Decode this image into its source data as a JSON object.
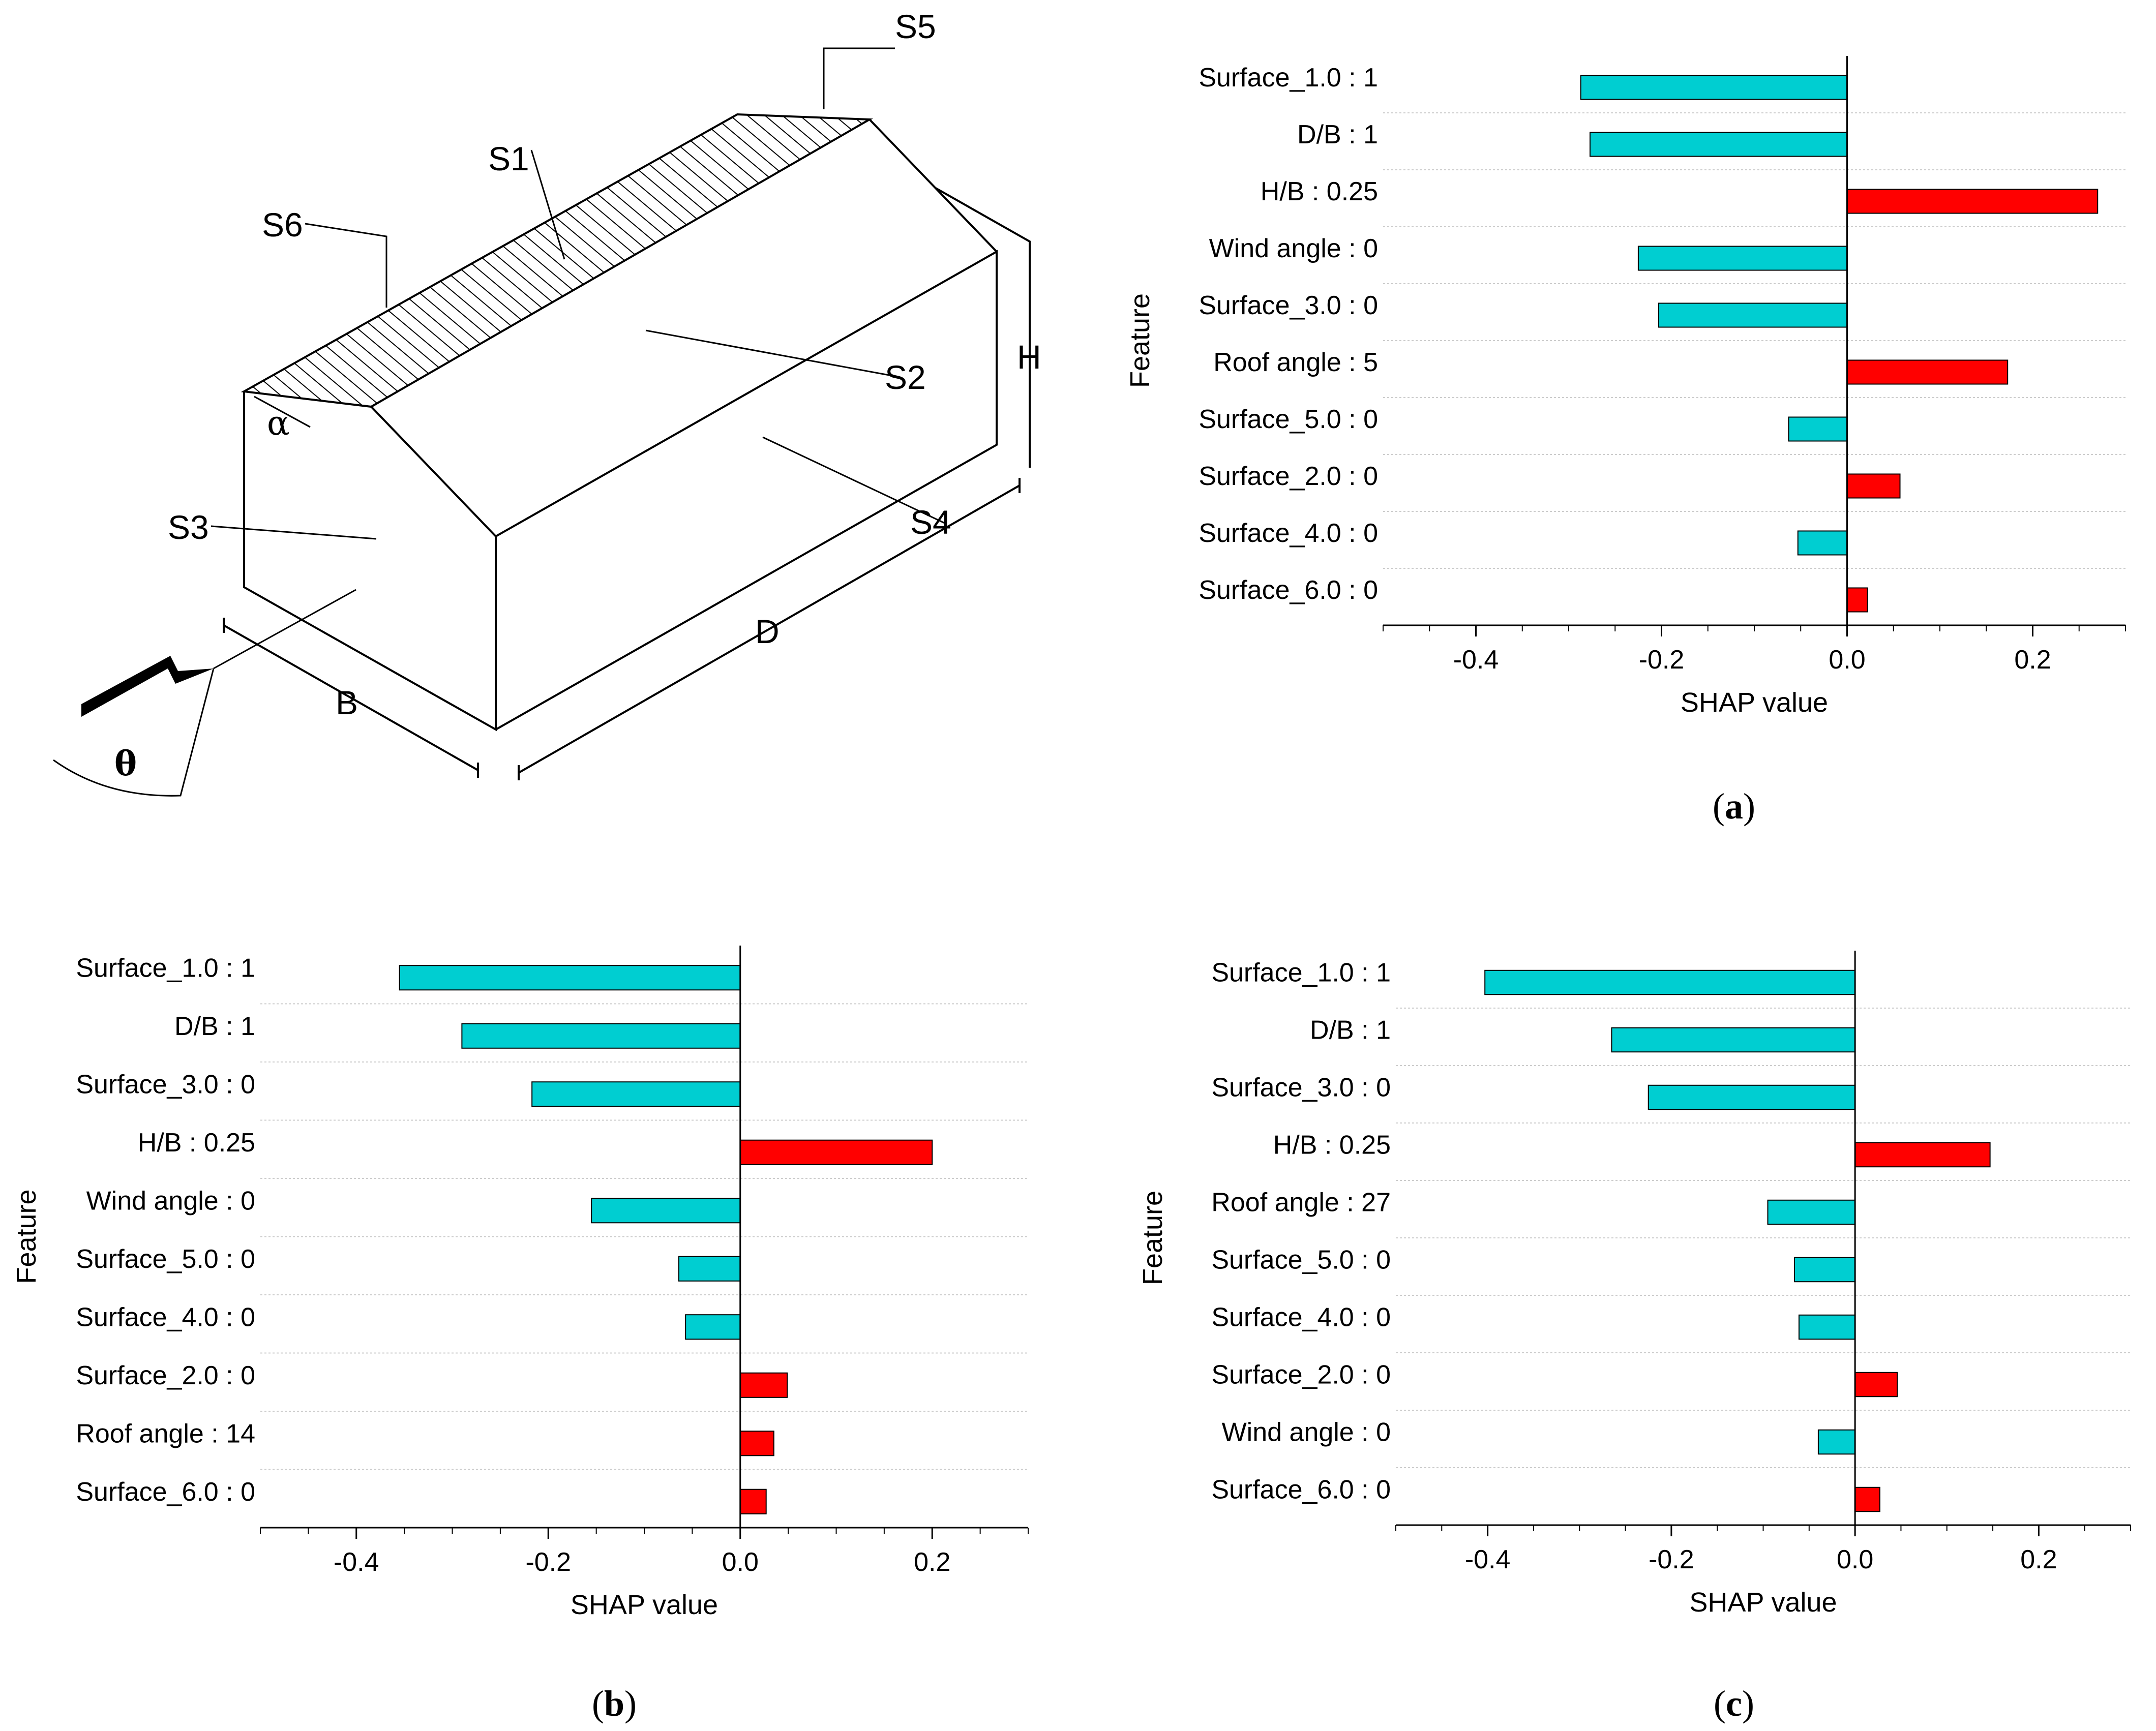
{
  "diagram": {
    "labels": {
      "s1": "S1",
      "s2": "S2",
      "s3": "S3",
      "s4": "S4",
      "s5": "S5",
      "s6": "S6",
      "alpha": "α",
      "theta": "θ",
      "b": "B",
      "d": "D",
      "h": "H"
    }
  },
  "captions": {
    "a": "a",
    "b": "b",
    "c": "c"
  },
  "colors": {
    "negative": "#00CED1",
    "positive": "#FF0000",
    "grid": "#cccccc",
    "axis": "#000000"
  },
  "chart_data": [
    {
      "id": "a",
      "type": "bar",
      "orientation": "horizontal",
      "xlabel": "SHAP value",
      "ylabel": "Feature",
      "xlim": [
        -0.5,
        0.3
      ],
      "xticks": [
        -0.4,
        -0.2,
        0.0,
        0.2
      ],
      "categories": [
        "Surface_1.0 : 1",
        "D/B : 1",
        "H/B : 0.25",
        "Wind angle : 0",
        "Surface_3.0 : 0",
        "Roof angle : 5",
        "Surface_5.0 : 0",
        "Surface_2.0 : 0",
        "Surface_4.0 : 0",
        "Surface_6.0 : 0"
      ],
      "values": [
        -0.287,
        -0.277,
        0.27,
        -0.225,
        -0.203,
        0.173,
        -0.063,
        0.057,
        -0.053,
        0.022
      ]
    },
    {
      "id": "b",
      "type": "bar",
      "orientation": "horizontal",
      "xlabel": "SHAP value",
      "ylabel": "Feature",
      "xlim": [
        -0.5,
        0.3
      ],
      "xticks": [
        -0.4,
        -0.2,
        0.0,
        0.2
      ],
      "categories": [
        "Surface_1.0 : 1",
        "D/B : 1",
        "Surface_3.0 : 0",
        "H/B : 0.25",
        "Wind angle : 0",
        "Surface_5.0 : 0",
        "Surface_4.0 : 0",
        "Surface_2.0 : 0",
        "Roof angle : 14",
        "Surface_6.0 : 0"
      ],
      "values": [
        -0.355,
        -0.29,
        -0.217,
        0.2,
        -0.155,
        -0.064,
        -0.057,
        0.049,
        0.035,
        0.027
      ]
    },
    {
      "id": "c",
      "type": "bar",
      "orientation": "horizontal",
      "xlabel": "SHAP value",
      "ylabel": "Feature",
      "xlim": [
        -0.5,
        0.3
      ],
      "xticks": [
        -0.4,
        -0.2,
        0.0,
        0.2
      ],
      "categories": [
        "Surface_1.0 : 1",
        "D/B : 1",
        "Surface_3.0 : 0",
        "H/B : 0.25",
        "Roof angle : 27",
        "Surface_5.0 : 0",
        "Surface_4.0 : 0",
        "Surface_2.0 : 0",
        "Wind angle : 0",
        "Surface_6.0 : 0"
      ],
      "values": [
        -0.403,
        -0.265,
        -0.225,
        0.147,
        -0.095,
        -0.066,
        -0.061,
        0.046,
        -0.04,
        0.027
      ]
    }
  ]
}
